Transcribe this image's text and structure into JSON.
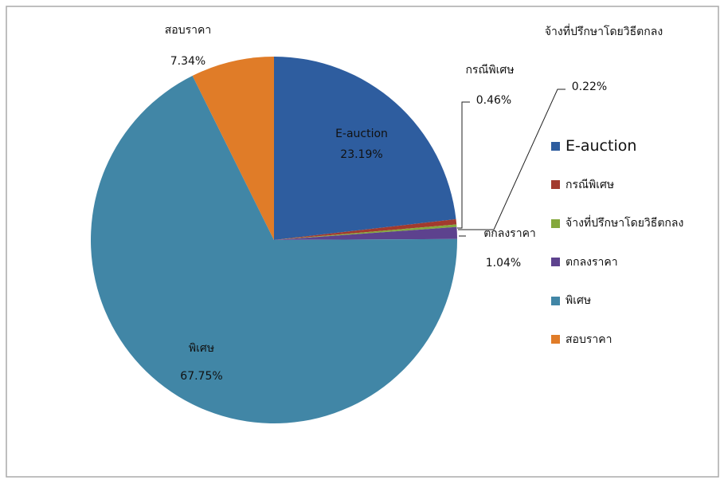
{
  "chart_data": {
    "type": "pie",
    "categories": [
      "E-auction",
      "กรณีพิเศษ",
      "จ้างที่ปรึกษาโดยวิธีตกลง",
      "ตกลงราคา",
      "พิเศษ",
      "สอบราคา"
    ],
    "values": [
      23.19,
      0.46,
      0.22,
      1.04,
      67.75,
      7.34
    ],
    "value_labels": [
      "23.19%",
      "0.46%",
      "0.22%",
      "1.04%",
      "67.75%",
      "7.34%"
    ],
    "colors": [
      "#2e5d9f",
      "#a23a2e",
      "#84a83c",
      "#5d428e",
      "#4186a6",
      "#e07c28"
    ],
    "legend": "right"
  }
}
